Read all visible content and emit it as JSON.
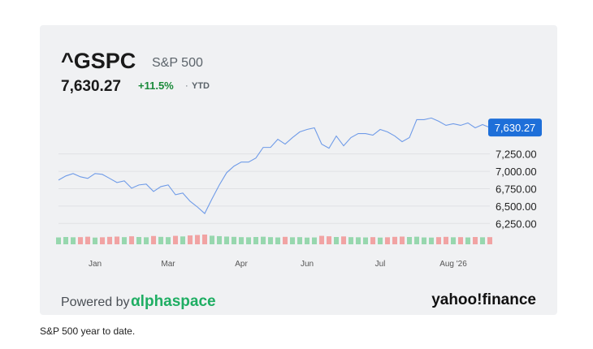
{
  "chart_data": {
    "type": "line",
    "symbol": "^GSPC",
    "name": "S&P 500",
    "price": "7,630.27",
    "change": "+11.5%",
    "period": "YTD",
    "powered_by": "Powered by",
    "provider": "αlphaspace",
    "brand": "yahoo!finance",
    "caption": "S&P 500 year to date.",
    "categories": [
      null,
      null,
      null,
      null,
      null,
      "Jan",
      null,
      null,
      null,
      null,
      null,
      null,
      null,
      null,
      null,
      "Mar",
      null,
      null,
      null,
      null,
      null,
      null,
      null,
      null,
      null,
      "Apr",
      null,
      null,
      null,
      null,
      null,
      null,
      null,
      null,
      "Jun",
      null,
      null,
      null,
      null,
      null,
      null,
      null,
      null,
      null,
      "Jul",
      null,
      null,
      null,
      null,
      null,
      null,
      null,
      null,
      null,
      "Aug '26",
      null,
      null,
      null,
      null,
      null
    ],
    "values": [
      6874,
      6933,
      6968,
      6921,
      6898,
      6968,
      6956,
      6898,
      6839,
      6863,
      6757,
      6804,
      6816,
      6710,
      6780,
      6804,
      6663,
      6687,
      6569,
      6487,
      6393,
      6604,
      6804,
      6980,
      7074,
      7133,
      7133,
      7191,
      7344,
      7344,
      7461,
      7391,
      7485,
      7567,
      7602,
      7626,
      7391,
      7332,
      7508,
      7367,
      7485,
      7543,
      7543,
      7520,
      7602,
      7567,
      7508,
      7426,
      7485,
      7743,
      7743,
      7767,
      7720,
      7661,
      7685,
      7661,
      7696,
      7626,
      7673,
      7630.27
    ],
    "volume": [
      4.8,
      5.1,
      4.9,
      5.0,
      5.3,
      4.7,
      4.9,
      5.2,
      5.4,
      5.0,
      5.6,
      5.1,
      4.9,
      5.8,
      5.2,
      5.0,
      5.9,
      5.5,
      6.2,
      6.5,
      6.8,
      6.0,
      5.7,
      5.4,
      5.2,
      5.0,
      4.9,
      5.1,
      5.3,
      5.0,
      4.8,
      5.2,
      4.9,
      5.0,
      4.7,
      4.8,
      5.9,
      5.6,
      5.1,
      5.5,
      5.0,
      4.9,
      4.8,
      5.0,
      4.7,
      4.9,
      5.2,
      5.4,
      5.1,
      5.3,
      4.8,
      4.7,
      5.0,
      5.2,
      4.9,
      5.0,
      4.8,
      5.1,
      4.9,
      5.0
    ],
    "color": "#6f9be8",
    "up_color": "#97d7ae",
    "down_color": "#f1a3a3",
    "ylim": [
      6160,
      7830
    ],
    "yticks": [
      {
        "value": 6250,
        "label": "6,250.00"
      },
      {
        "value": 6500,
        "label": "6,500.00"
      },
      {
        "value": 6750,
        "label": "6,750.00"
      },
      {
        "value": 7000,
        "label": "7,000.00"
      },
      {
        "value": 7250,
        "label": "7,250.00"
      }
    ],
    "grid": true
  }
}
